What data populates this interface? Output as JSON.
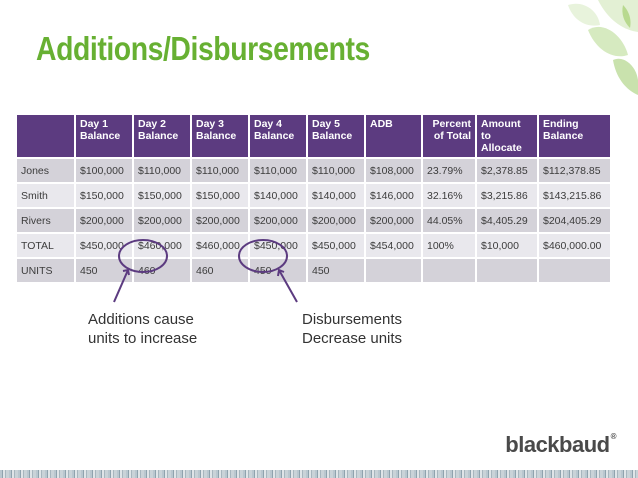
{
  "title": "Additions/Disbursements",
  "table": {
    "headers": [
      {
        "line1": "",
        "line2": ""
      },
      {
        "line1": "Day 1",
        "line2": "Balance"
      },
      {
        "line1": "Day 2",
        "line2": "Balance"
      },
      {
        "line1": "Day 3",
        "line2": "Balance"
      },
      {
        "line1": "Day 4",
        "line2": "Balance"
      },
      {
        "line1": "Day 5",
        "line2": "Balance"
      },
      {
        "line1": "ADB",
        "line2": ""
      },
      {
        "line1": "Percent",
        "line2": "of Total"
      },
      {
        "line1": "Amount to",
        "line2": "Allocate"
      },
      {
        "line1": "Ending",
        "line2": "Balance"
      }
    ],
    "rows": [
      [
        "Jones",
        "$100,000",
        "$110,000",
        "$110,000",
        "$110,000",
        "$110,000",
        "$108,000",
        "23.79%",
        "$2,378.85",
        "$112,378.85"
      ],
      [
        "Smith",
        "$150,000",
        "$150,000",
        "$150,000",
        "$140,000",
        "$140,000",
        "$146,000",
        "32.16%",
        "$3,215.86",
        "$143,215.86"
      ],
      [
        "Rivers",
        "$200,000",
        "$200,000",
        "$200,000",
        "$200,000",
        "$200,000",
        "$200,000",
        "44.05%",
        "$4,405.29",
        "$204,405.29"
      ],
      [
        "TOTAL",
        "$450,000",
        "$460,000",
        "$460,000",
        "$450,000",
        "$450,000",
        "$454,000",
        "100%",
        "$10,000",
        "$460,000.00"
      ],
      [
        "UNITS",
        "450",
        "460",
        "460",
        "450",
        "450",
        "",
        "",
        "",
        ""
      ]
    ]
  },
  "callouts": {
    "additions": {
      "line1": "Additions cause",
      "line2": "units to increase"
    },
    "disbursements": {
      "line1": "Disbursements",
      "line2": "Decrease units"
    }
  },
  "logo": {
    "text": "blackbaud",
    "mark": "®"
  },
  "colors": {
    "title": "#67b032",
    "header": "#5c3b80",
    "row_dark": "#d4d2d9",
    "row_light": "#e9e8ed",
    "annotation": "#5c3b80"
  }
}
